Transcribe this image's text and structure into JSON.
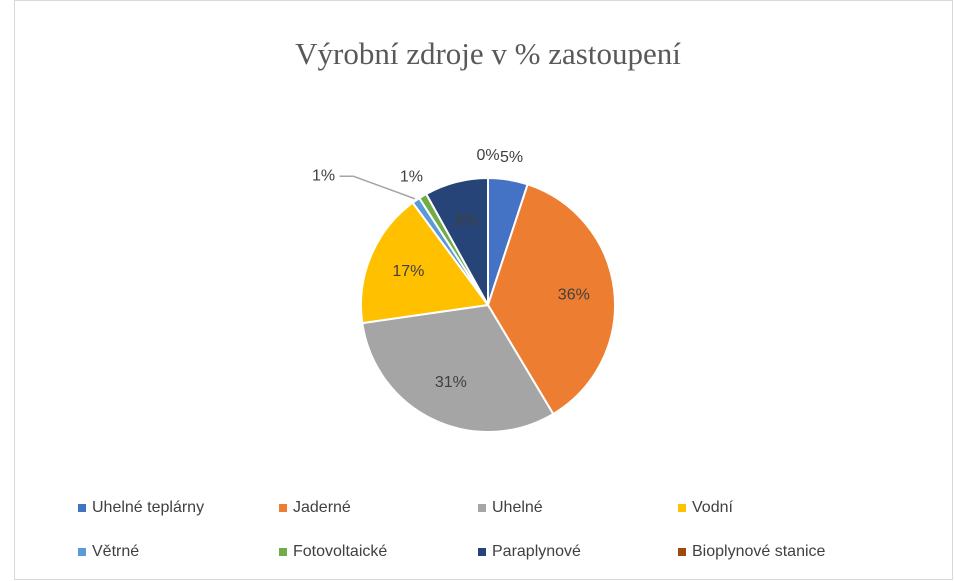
{
  "chart_data": {
    "type": "pie",
    "title": "Výrobní zdroje v % zastoupení",
    "categories": [
      "Uhelné teplárny",
      "Jaderné",
      "Uhelné",
      "Vodní",
      "Větrné",
      "Fotovoltaické",
      "Paraplynové",
      "Bioplynové stanice"
    ],
    "values": [
      5,
      36,
      31,
      17,
      1,
      1,
      8,
      0
    ],
    "value_labels": [
      "5%",
      "36%",
      "31%",
      "17%",
      "1%",
      "1%",
      "8%",
      "0%"
    ],
    "colors": [
      "#4472c4",
      "#ed7d31",
      "#a5a5a5",
      "#ffc000",
      "#5b9bd5",
      "#70ad47",
      "#264478",
      "#9e480e"
    ],
    "legend": "bottom"
  }
}
